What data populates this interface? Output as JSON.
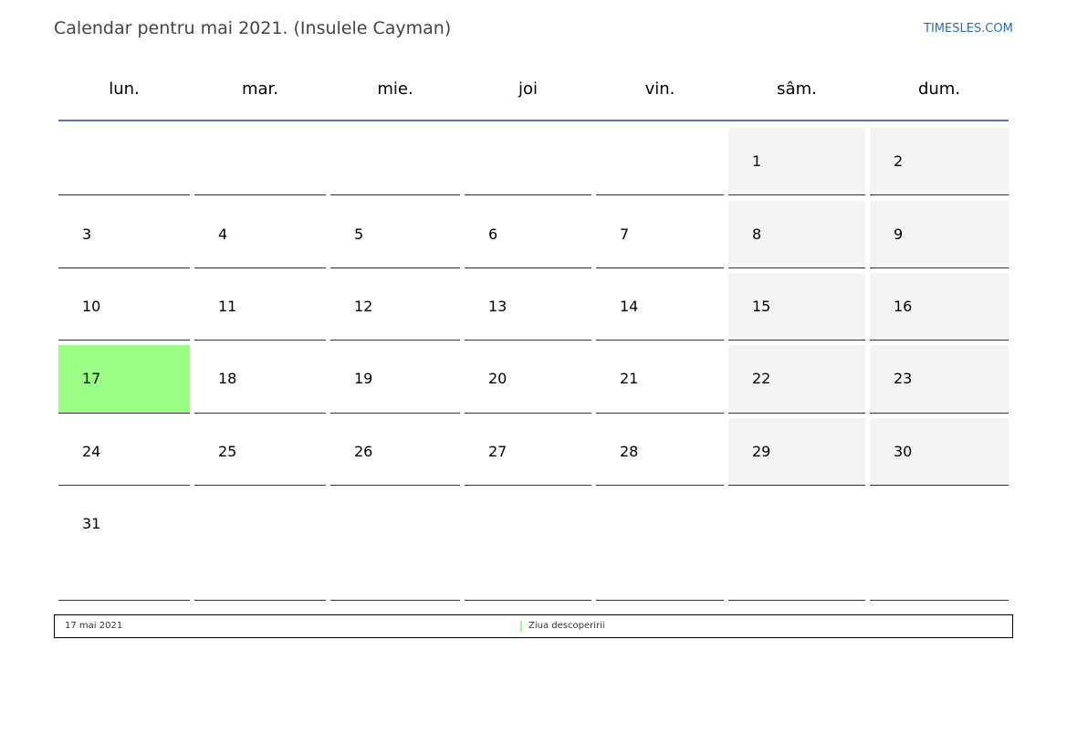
{
  "header": {
    "title": "Calendar pentru mai 2021. (Insulele Cayman)",
    "brand": "TIMESLES.COM"
  },
  "weekdays": [
    "lun.",
    "mar.",
    "mie.",
    "joi",
    "vin.",
    "sâm.",
    "dum."
  ],
  "weeks": [
    [
      "",
      "",
      "",
      "",
      "",
      "1",
      "2"
    ],
    [
      "3",
      "4",
      "5",
      "6",
      "7",
      "8",
      "9"
    ],
    [
      "10",
      "11",
      "12",
      "13",
      "14",
      "15",
      "16"
    ],
    [
      "17",
      "18",
      "19",
      "20",
      "21",
      "22",
      "23"
    ],
    [
      "24",
      "25",
      "26",
      "27",
      "28",
      "29",
      "30"
    ],
    [
      "31",
      "",
      "",
      "",
      "",
      "",
      ""
    ]
  ],
  "legend": {
    "date": "17 mai 2021",
    "name": "Ziua descoperirii"
  },
  "colors": {
    "holiday": "#9afe86",
    "weekend": "#f4f4f4",
    "header_rule": "#5a7499",
    "brand": "#2b6fa8"
  }
}
